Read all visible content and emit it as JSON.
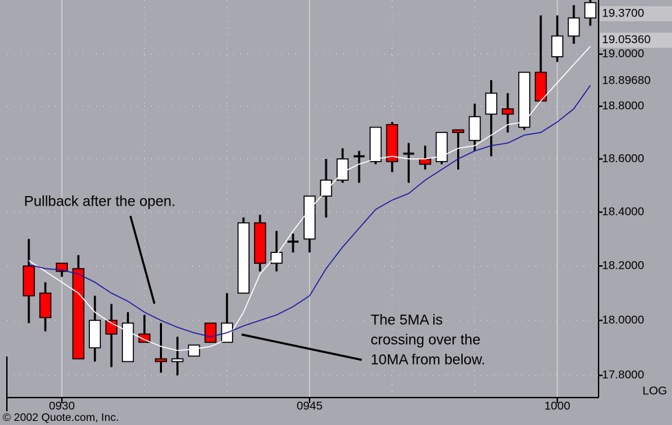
{
  "chart_data": {
    "type": "candlestick",
    "log_scale": true,
    "categories": [
      null,
      null,
      "0930",
      null,
      null,
      null,
      null,
      null,
      null,
      null,
      null,
      null,
      null,
      null,
      null,
      null,
      null,
      "0945",
      null,
      null,
      null,
      null,
      null,
      null,
      null,
      null,
      null,
      null,
      null,
      null,
      null,
      null,
      "1000",
      null,
      null
    ],
    "open": [
      18.2,
      18.1,
      18.21,
      18.19,
      17.9,
      18.0,
      17.85,
      17.95,
      17.86,
      17.85,
      17.87,
      17.99,
      17.92,
      18.1,
      18.36,
      18.21,
      18.29,
      18.3,
      18.46,
      18.52,
      18.61,
      18.59,
      18.73,
      18.62,
      18.6,
      18.59,
      18.71,
      18.67,
      18.77,
      18.79,
      18.72,
      18.93,
      18.99,
      19.07,
      19.14
    ],
    "high": [
      18.3,
      18.14,
      18.21,
      18.24,
      18.09,
      18.06,
      18.03,
      18.02,
      17.99,
      17.94,
      17.91,
      17.99,
      18.1,
      18.38,
      18.39,
      18.33,
      18.32,
      18.46,
      18.6,
      18.64,
      18.63,
      18.72,
      18.74,
      18.66,
      18.65,
      18.7,
      18.71,
      18.81,
      18.9,
      18.85,
      18.93,
      19.15,
      19.15,
      19.19,
      19.25
    ],
    "low": [
      17.99,
      17.96,
      18.16,
      17.86,
      17.85,
      17.83,
      17.85,
      17.92,
      17.81,
      17.8,
      17.87,
      17.92,
      17.92,
      18.1,
      18.18,
      18.18,
      18.25,
      18.25,
      18.38,
      18.51,
      18.51,
      18.58,
      18.55,
      18.51,
      18.56,
      18.58,
      18.56,
      18.63,
      18.61,
      18.7,
      18.71,
      18.82,
      18.97,
      19.04,
      19.11
    ],
    "close": [
      18.09,
      18.01,
      18.18,
      17.86,
      18.0,
      17.95,
      17.99,
      17.92,
      17.85,
      17.86,
      17.91,
      17.92,
      17.99,
      18.36,
      18.21,
      18.25,
      18.29,
      18.46,
      18.52,
      18.6,
      18.61,
      18.72,
      18.59,
      18.62,
      18.58,
      18.7,
      18.7,
      18.76,
      18.85,
      18.77,
      18.93,
      18.82,
      19.07,
      19.14,
      19.2
    ],
    "up_color": "#ffffff",
    "down_color": "#ff0000",
    "lines": [
      {
        "color": "#ffffff",
        "values": [
          18.22,
          18.18,
          18.14,
          18.1,
          18.03,
          17.99,
          17.96,
          17.93,
          17.905,
          17.89,
          17.895,
          17.905,
          17.93,
          18.03,
          18.17,
          18.24,
          18.33,
          18.41,
          18.48,
          18.55,
          18.58,
          18.6,
          18.61,
          18.6,
          18.6,
          18.61,
          18.64,
          18.65,
          18.69,
          18.73,
          18.74,
          18.82,
          18.89,
          18.96,
          19.03
        ]
      },
      {
        "color": "#1a1aa8",
        "values": [
          18.205,
          18.19,
          18.185,
          18.17,
          18.14,
          18.1,
          18.07,
          18.03,
          18.0,
          17.975,
          17.955,
          17.94,
          17.955,
          17.98,
          18.0,
          18.02,
          18.05,
          18.09,
          18.19,
          18.27,
          18.34,
          18.41,
          18.445,
          18.47,
          18.52,
          18.56,
          18.6,
          18.63,
          18.65,
          18.66,
          18.69,
          18.7,
          18.74,
          18.79,
          18.88
        ]
      }
    ],
    "ylim": [
      17.72,
      19.21
    ],
    "yticks": [
      {
        "value": 17.8,
        "label": "17.8000"
      },
      {
        "value": 18.0,
        "label": "18.0000"
      },
      {
        "value": 18.2,
        "label": "18.2000"
      },
      {
        "value": 18.4,
        "label": "18.4000"
      },
      {
        "value": 18.6,
        "label": "18.6000"
      },
      {
        "value": 18.8,
        "label": "18.8000"
      },
      {
        "value": 19.0,
        "label": "19.0000"
      }
    ],
    "price_labels": [
      {
        "value": 19.37,
        "label": "19.3700",
        "color": "#000000",
        "background": "#c4c4c8"
      },
      {
        "value": 19.0536,
        "label": "19.05360",
        "color": "#ffffff",
        "background": "#c8c8cc"
      },
      {
        "value": 18.8968,
        "label": "18.89680",
        "color": "#1a1aa8"
      }
    ],
    "grid": true,
    "axis_label": "LOG",
    "annotations": [
      [
        "Pullback after the open."
      ],
      [
        "The 5MA is",
        "crossing over the",
        "10MA from below."
      ]
    ],
    "footer": "© 2002 Quote.com, Inc."
  }
}
